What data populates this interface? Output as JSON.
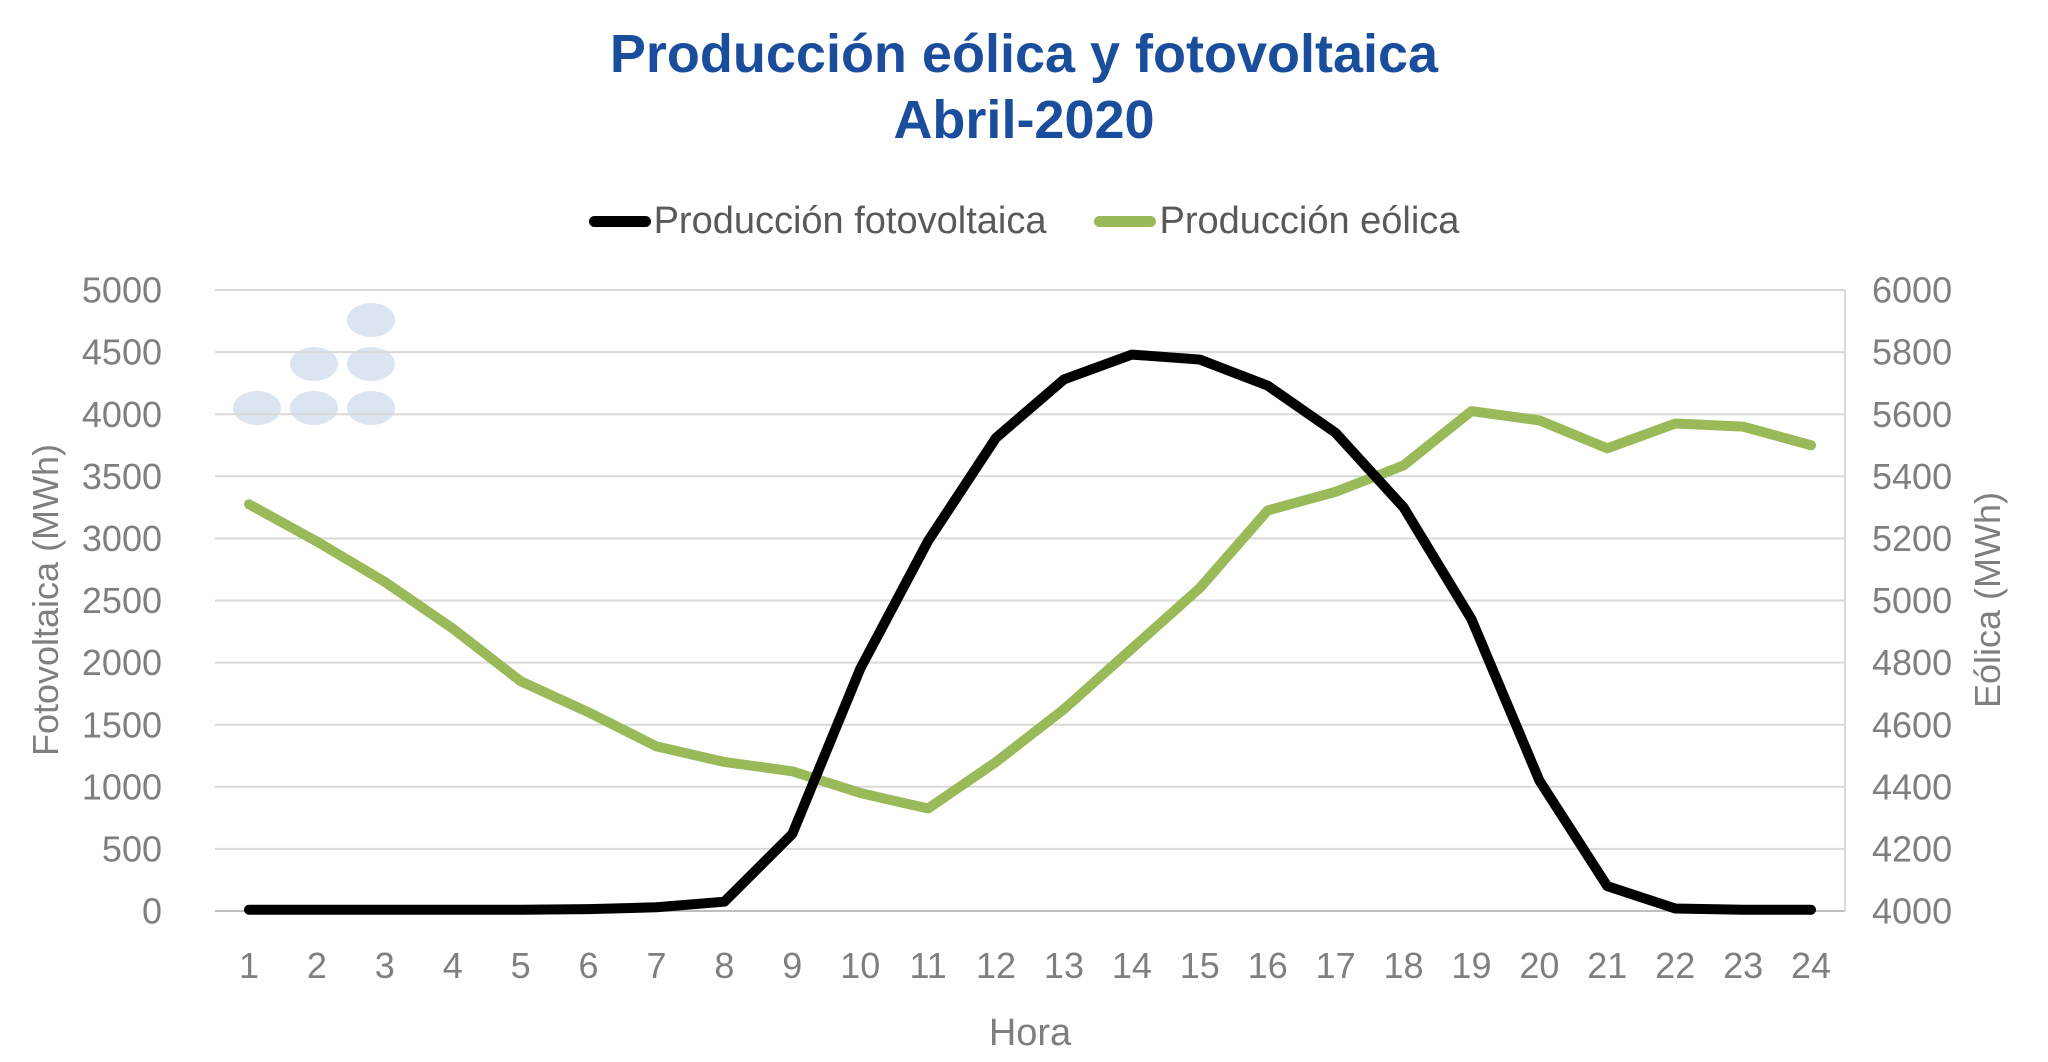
{
  "title": {
    "line1": "Producción eólica y fotovoltaica",
    "line2": "Abril-2020",
    "color": "#1a4e9c"
  },
  "legend": {
    "text_color": "#595959",
    "items": [
      {
        "label": "Producción fotovoltaica",
        "color": "#000000"
      },
      {
        "label": "Producción eólica",
        "color": "#9aba59"
      }
    ]
  },
  "chart_data": {
    "type": "line",
    "title": "Producción eólica y fotovoltaica",
    "subtitle": "Abril-2020",
    "xlabel": "Hora",
    "x": [
      1,
      2,
      3,
      4,
      5,
      6,
      7,
      8,
      9,
      10,
      11,
      12,
      13,
      14,
      15,
      16,
      17,
      18,
      19,
      20,
      21,
      22,
      23,
      24
    ],
    "x_ticks": [
      "1",
      "2",
      "3",
      "4",
      "5",
      "6",
      "7",
      "8",
      "9",
      "10",
      "11",
      "12",
      "13",
      "14",
      "15",
      "16",
      "17",
      "18",
      "19",
      "20",
      "21",
      "22",
      "23",
      "24"
    ],
    "series": [
      {
        "name": "Producción fotovoltaica",
        "axis": "left",
        "color": "#000000",
        "values": [
          10,
          10,
          10,
          10,
          10,
          15,
          30,
          75,
          620,
          1950,
          2980,
          3810,
          4280,
          4480,
          4440,
          4230,
          3850,
          3250,
          2350,
          1050,
          200,
          20,
          10,
          10
        ]
      },
      {
        "name": "Producción eólica",
        "axis": "right",
        "color": "#9aba59",
        "values": [
          5310,
          5190,
          5060,
          4910,
          4740,
          4640,
          4530,
          4480,
          4450,
          4380,
          4330,
          4480,
          4650,
          4845,
          5040,
          5290,
          5350,
          5435,
          5610,
          5580,
          5490,
          5570,
          5560,
          5500
        ]
      }
    ],
    "left_axis": {
      "label": "Fotovoltaica (MWh)",
      "min": 0,
      "max": 5000,
      "step": 500,
      "ticks": [
        0,
        500,
        1000,
        1500,
        2000,
        2500,
        3000,
        3500,
        4000,
        4500,
        5000
      ]
    },
    "right_axis": {
      "label": "Eólica (MWh)",
      "min": 4000,
      "max": 6000,
      "step": 200,
      "ticks": [
        4000,
        4200,
        4400,
        4600,
        4800,
        5000,
        5200,
        5400,
        5600,
        5800,
        6000
      ]
    },
    "grid": true,
    "legend_position": "top",
    "tick_color": "#7f7f7f",
    "grid_color": "#d9d9d9",
    "axis_line_color": "#bfbfbf",
    "watermark_color": "#dbe5f1"
  }
}
